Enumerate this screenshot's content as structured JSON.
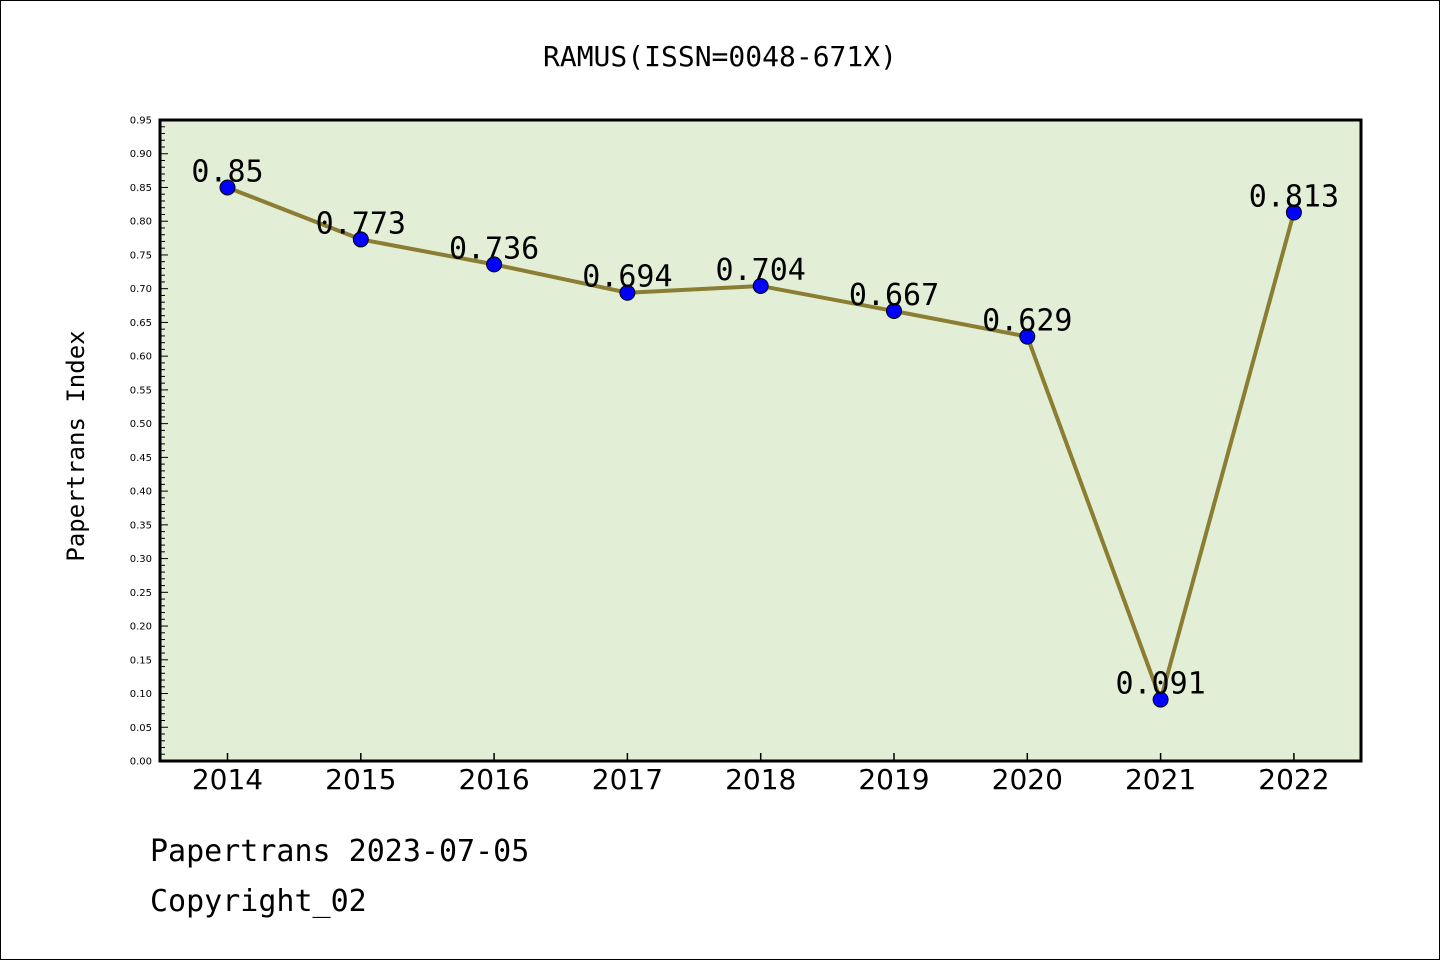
{
  "chart_data": {
    "type": "line",
    "title": "RAMUS(ISSN=0048-671X)",
    "xlabel": "",
    "ylabel": "Papertrans Index",
    "categories": [
      "2014",
      "2015",
      "2016",
      "2017",
      "2018",
      "2019",
      "2020",
      "2021",
      "2022"
    ],
    "values": [
      0.85,
      0.773,
      0.736,
      0.694,
      0.704,
      0.667,
      0.629,
      0.091,
      0.813
    ],
    "data_labels": [
      "0.85",
      "0.773",
      "0.736",
      "0.694",
      "0.704",
      "0.667",
      "0.629",
      "0.091",
      "0.813"
    ],
    "ylim": [
      0,
      0.95
    ],
    "yticks": [
      "0.00",
      "0.05",
      "0.10",
      "0.15",
      "0.20",
      "0.25",
      "0.30",
      "0.35",
      "0.40",
      "0.45",
      "0.50",
      "0.55",
      "0.60",
      "0.65",
      "0.70",
      "0.75",
      "0.80",
      "0.85",
      "0.90",
      "0.95"
    ],
    "grid": false,
    "colors": {
      "plot_background": "#e2efd6",
      "line": "#8b7d32",
      "marker": "#0000ff"
    }
  },
  "footer": {
    "source": "Papertrans 2023-07-05",
    "copyright": "Copyright_02"
  }
}
